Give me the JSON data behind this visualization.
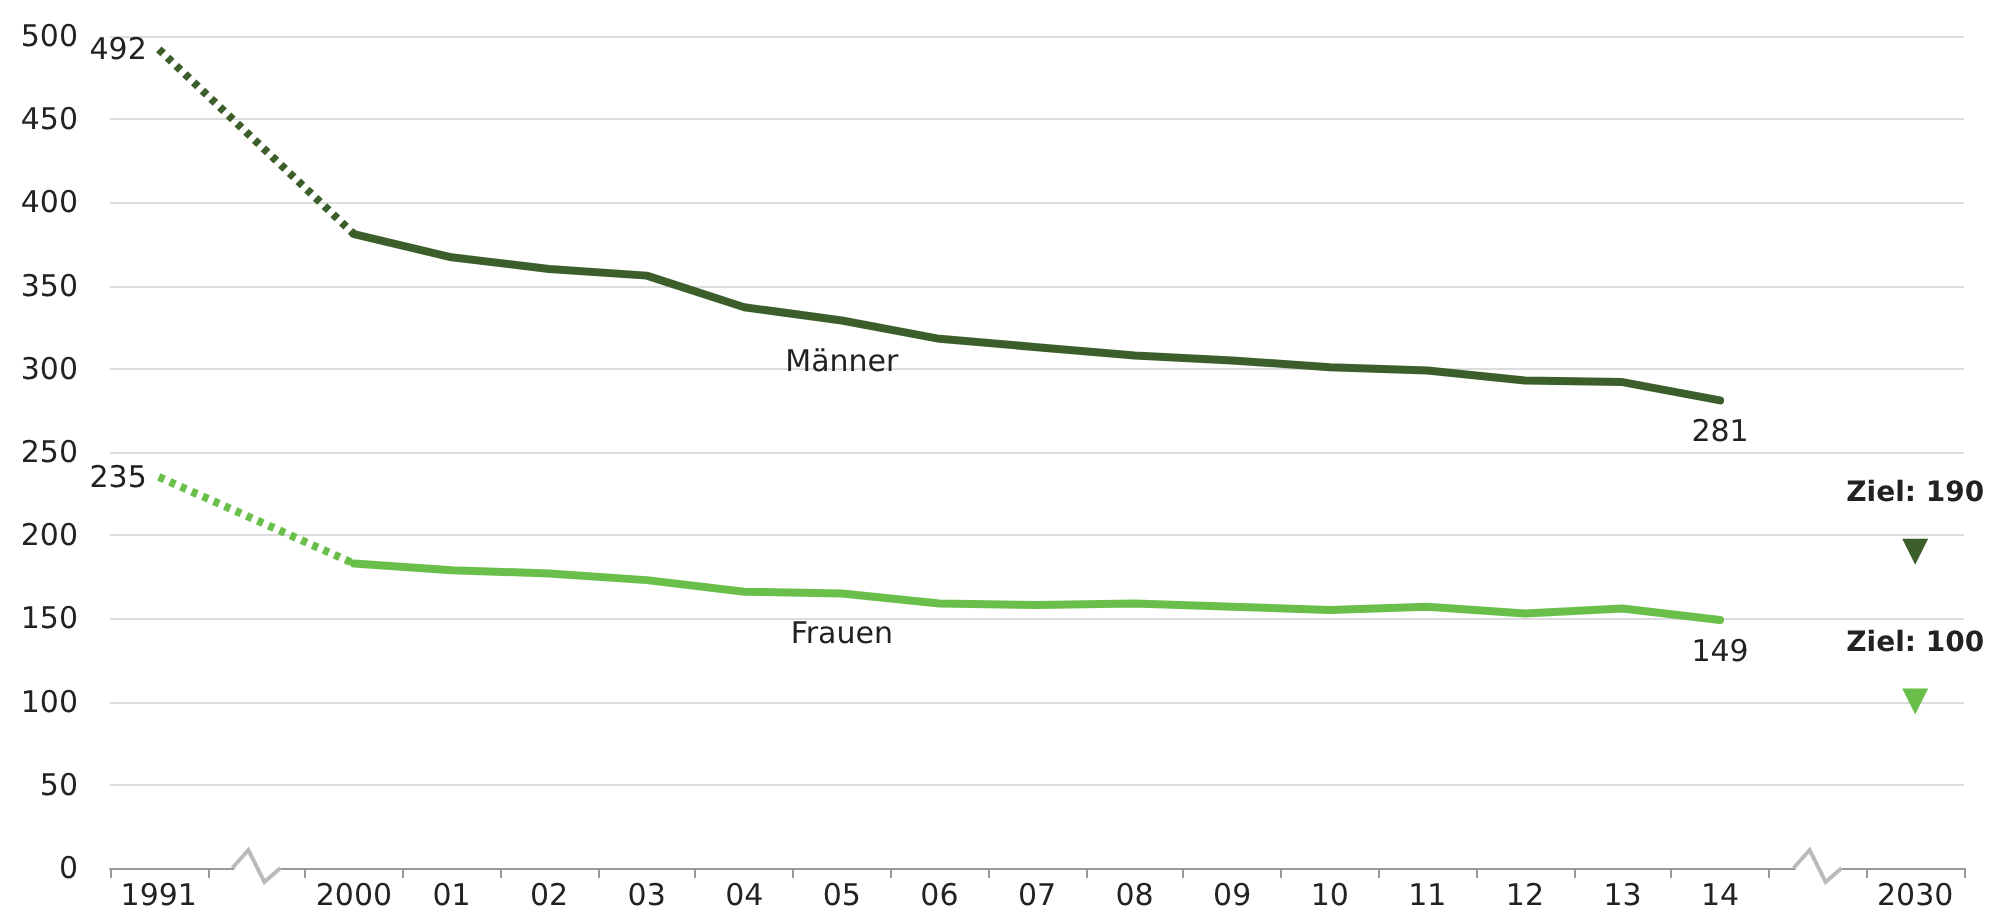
{
  "chart_data": {
    "type": "line",
    "categories": [
      "1991",
      null,
      "2000",
      "01",
      "02",
      "03",
      "04",
      "05",
      "06",
      "07",
      "08",
      "09",
      "10",
      "11",
      "12",
      "13",
      "14",
      null,
      "2030"
    ],
    "ylim": [
      0,
      500
    ],
    "yticks": [
      0,
      50,
      100,
      150,
      200,
      250,
      300,
      350,
      400,
      450,
      500
    ],
    "grid": "y",
    "legend": false,
    "marker": "none",
    "series": [
      {
        "name": "Männer",
        "color": "#3b5e2b",
        "line_style": "solid",
        "values": [
          null,
          null,
          381,
          367,
          360,
          356,
          337,
          329,
          318,
          313,
          308,
          305,
          301,
          299,
          293,
          292,
          281,
          null,
          null
        ],
        "value_labels": [
          null,
          null,
          null,
          null,
          null,
          null,
          null,
          null,
          null,
          null,
          null,
          null,
          null,
          null,
          null,
          null,
          "281",
          null,
          null
        ]
      },
      {
        "color": "#3b5e2b",
        "line_style": "dotted",
        "values": [
          492,
          null,
          381,
          null,
          null,
          null,
          null,
          null,
          null,
          null,
          null,
          null,
          null,
          null,
          null,
          null,
          null,
          null,
          null
        ],
        "value_labels": [
          "492",
          null,
          null,
          null,
          null,
          null,
          null,
          null,
          null,
          null,
          null,
          null,
          null,
          null,
          null,
          null,
          null,
          null,
          null
        ]
      },
      {
        "name": "Frauen",
        "color": "#6abf4b",
        "line_style": "solid",
        "values": [
          null,
          null,
          183,
          179,
          177,
          173,
          166,
          165,
          159,
          158,
          159,
          157,
          155,
          157,
          153,
          156,
          149,
          null,
          null
        ],
        "value_labels": [
          null,
          null,
          null,
          null,
          null,
          null,
          null,
          null,
          null,
          null,
          null,
          null,
          null,
          null,
          null,
          null,
          "149",
          null,
          null
        ]
      },
      {
        "color": "#6abf4b",
        "line_style": "dotted",
        "values": [
          235,
          null,
          183,
          null,
          null,
          null,
          null,
          null,
          null,
          null,
          null,
          null,
          null,
          null,
          null,
          null,
          null,
          null,
          null
        ],
        "value_labels": [
          "235",
          null,
          null,
          null,
          null,
          null,
          null,
          null,
          null,
          null,
          null,
          null,
          null,
          null,
          null,
          null,
          null,
          null,
          null
        ]
      },
      {
        "type": "scatter",
        "marker": "triangle",
        "color": "#3b5e2b",
        "values": [
          null,
          null,
          null,
          null,
          null,
          null,
          null,
          null,
          null,
          null,
          null,
          null,
          null,
          null,
          null,
          null,
          null,
          null,
          190
        ],
        "value_labels": [
          null,
          null,
          null,
          null,
          null,
          null,
          null,
          null,
          null,
          null,
          null,
          null,
          null,
          null,
          null,
          null,
          null,
          null,
          "Ziel: 190"
        ]
      },
      {
        "type": "scatter",
        "marker": "triangle",
        "color": "#6abf4b",
        "values": [
          null,
          null,
          null,
          null,
          null,
          null,
          null,
          null,
          null,
          null,
          null,
          null,
          null,
          null,
          null,
          null,
          null,
          null,
          100
        ],
        "value_labels": [
          null,
          null,
          null,
          null,
          null,
          null,
          null,
          null,
          null,
          null,
          null,
          null,
          null,
          null,
          null,
          null,
          null,
          null,
          "Ziel: 100"
        ]
      }
    ]
  }
}
